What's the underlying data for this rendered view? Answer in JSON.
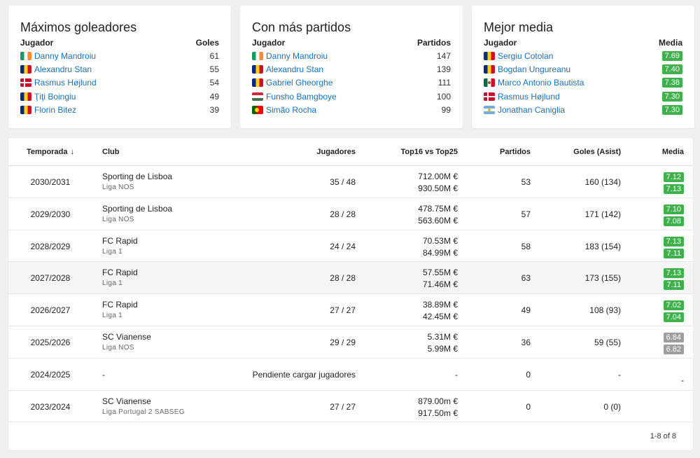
{
  "cards": [
    {
      "title": "Máximos goleadores",
      "col_player": "Jugador",
      "col_value": "Goles",
      "rows": [
        {
          "flag": "ie",
          "name": "Danny Mandroiu",
          "value": "61"
        },
        {
          "flag": "ro",
          "name": "Alexandru Stan",
          "value": "55"
        },
        {
          "flag": "dk",
          "name": "Rasmus Højlund",
          "value": "54"
        },
        {
          "flag": "ro",
          "name": "Ţiţi Boingiu",
          "value": "49"
        },
        {
          "flag": "ro",
          "name": "Florin Bitez",
          "value": "39"
        }
      ]
    },
    {
      "title": "Con más partidos",
      "col_player": "Jugador",
      "col_value": "Partidos",
      "rows": [
        {
          "flag": "ie",
          "name": "Danny Mandroiu",
          "value": "147"
        },
        {
          "flag": "ro",
          "name": "Alexandru Stan",
          "value": "139"
        },
        {
          "flag": "ro",
          "name": "Gabriel Gheorghe",
          "value": "111"
        },
        {
          "flag": "hu",
          "name": "Funsho Bamgboye",
          "value": "100"
        },
        {
          "flag": "pt",
          "name": "Simão Rocha",
          "value": "99"
        }
      ]
    },
    {
      "title": "Mejor media",
      "col_player": "Jugador",
      "col_value": "Media",
      "rows": [
        {
          "flag": "ro",
          "name": "Sergiu Cotolan",
          "value": "7.69"
        },
        {
          "flag": "ro",
          "name": "Bogdan Ungureanu",
          "value": "7.40"
        },
        {
          "flag": "mx",
          "name": "Marco Antonio Bautista",
          "value": "7.38"
        },
        {
          "flag": "dk",
          "name": "Rasmus Højlund",
          "value": "7.30"
        },
        {
          "flag": "ar",
          "name": "Jonathan Caniglia",
          "value": "7.30"
        }
      ]
    }
  ],
  "table": {
    "headers": {
      "season": "Temporada",
      "sort_arrow": "↓",
      "club": "Club",
      "players": "Jugadores",
      "values": "Top16 vs Top25",
      "matches": "Partidos",
      "goals": "Goles (Asist)",
      "media": "Media"
    },
    "rows": [
      {
        "season": "2030/2031",
        "club": "Sporting de Lisboa",
        "league": "Liga NOS",
        "players": "35 / 48",
        "v1": "712.00M €",
        "v2": "930.50M €",
        "matches": "53",
        "goals": "160 (134)",
        "m1": "7.12",
        "m2": "7.13",
        "grey": false
      },
      {
        "season": "2029/2030",
        "club": "Sporting de Lisboa",
        "league": "Liga NOS",
        "players": "28 / 28",
        "v1": "478.75M €",
        "v2": "563.60M €",
        "matches": "57",
        "goals": "171 (142)",
        "m1": "7.10",
        "m2": "7.08",
        "grey": false
      },
      {
        "season": "2028/2029",
        "club": "FC Rapid",
        "league": "Liga 1",
        "players": "24 / 24",
        "v1": "70.53M €",
        "v2": "84.99M €",
        "matches": "58",
        "goals": "183 (154)",
        "m1": "7.13",
        "m2": "7.11",
        "grey": false
      },
      {
        "season": "2027/2028",
        "club": "FC Rapid",
        "league": "Liga 1",
        "players": "28 / 28",
        "v1": "57.55M €",
        "v2": "71.46M €",
        "matches": "63",
        "goals": "173 (155)",
        "m1": "7.13",
        "m2": "7.11",
        "grey": false
      },
      {
        "season": "2026/2027",
        "club": "FC Rapid",
        "league": "Liga 1",
        "players": "27 / 27",
        "v1": "38.89M €",
        "v2": "42.45M €",
        "matches": "49",
        "goals": "108 (93)",
        "m1": "7.02",
        "m2": "7.04",
        "grey": false
      },
      {
        "season": "2025/2026",
        "club": "SC Vianense",
        "league": "Liga NOS",
        "players": "29 / 29",
        "v1": "5.31M €",
        "v2": "5.99M €",
        "matches": "36",
        "goals": "59 (55)",
        "m1": "6.84",
        "m2": "6.82",
        "grey": true
      },
      {
        "season": "2024/2025",
        "club": "-",
        "league": "",
        "players": "Pendiente cargar jugadores",
        "v1": "-",
        "v2": "",
        "matches": "0",
        "goals": "-",
        "m1": "",
        "m2": "-",
        "grey": false,
        "pending": true
      },
      {
        "season": "2023/2024",
        "club": "SC Vianense",
        "league": "Liga Portugal 2 SABSEG",
        "players": "27 / 27",
        "v1": "879.00m €",
        "v2": "917.50m €",
        "matches": "0",
        "goals": "0 (0)",
        "m1": "",
        "m2": "",
        "grey": false
      }
    ],
    "pagination": "1-8 of 8"
  }
}
